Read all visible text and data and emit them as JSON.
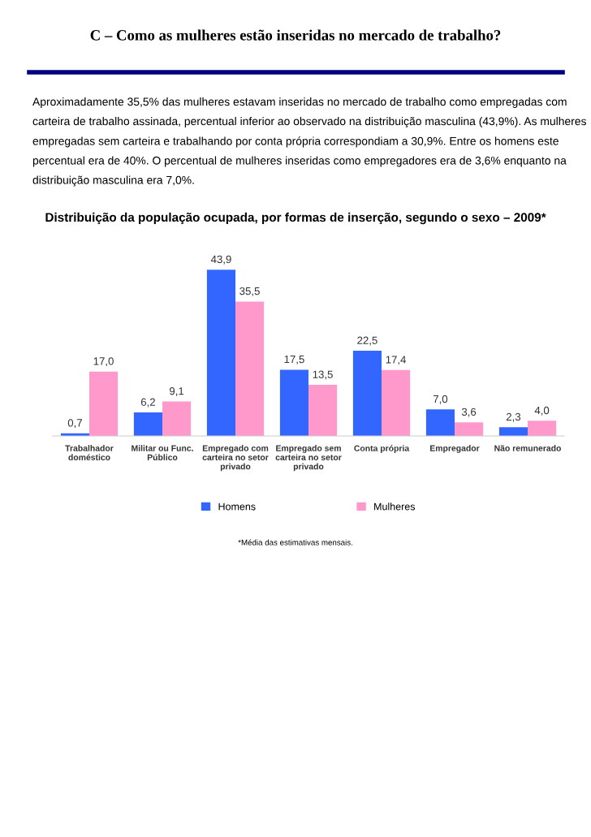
{
  "chart_data": {
    "type": "bar",
    "title": "Distribuição da população ocupada, por formas de inserção, segundo o sexo – 2009*",
    "categories": [
      "Trabalhador\ndoméstico",
      "Militar ou Func.\nPúblico",
      "Empregado com\ncarteira no setor\nprivado",
      "Empregado sem\ncarteira no setor\nprivado",
      "Conta própria",
      "Empregador",
      "Não remunerado"
    ],
    "series": [
      {
        "name": "Homens",
        "color": "#3366ff",
        "values": [
          0.7,
          6.2,
          43.9,
          17.5,
          22.5,
          7.0,
          2.3
        ],
        "value_labels": [
          "0,7",
          "6,2",
          "43,9",
          "17,5",
          "22,5",
          "7,0",
          "2,3"
        ]
      },
      {
        "name": "Mulheres",
        "color": "#ff99cc",
        "values": [
          17.0,
          9.1,
          35.5,
          13.5,
          17.4,
          3.6,
          4.0
        ],
        "value_labels": [
          "17,0",
          "9,1",
          "35,5",
          "13,5",
          "17,4",
          "3,6",
          "4,0"
        ]
      }
    ],
    "legend": "bottom",
    "grid": false,
    "tick_labels": "x",
    "annotations": [
      "C – Como as mulheres estão inseridas no mercado de trabalho?",
      "Aproximadamente 35,5% das mulheres estavam inseridas no mercado de trabalho como empregadas com carteira de trabalho assinada, percentual inferior ao observado na distribuição masculina (43,9%). As mulheres empregadas sem carteira e trabalhando por conta própria correspondiam a 30,9%. Entre os homens este percentual era de 40%. O percentual de mulheres inseridas como empregadores era de 3,6% enquanto na distribuição masculina era 7,0%.",
      "*Média das estimativas mensais."
    ]
  }
}
